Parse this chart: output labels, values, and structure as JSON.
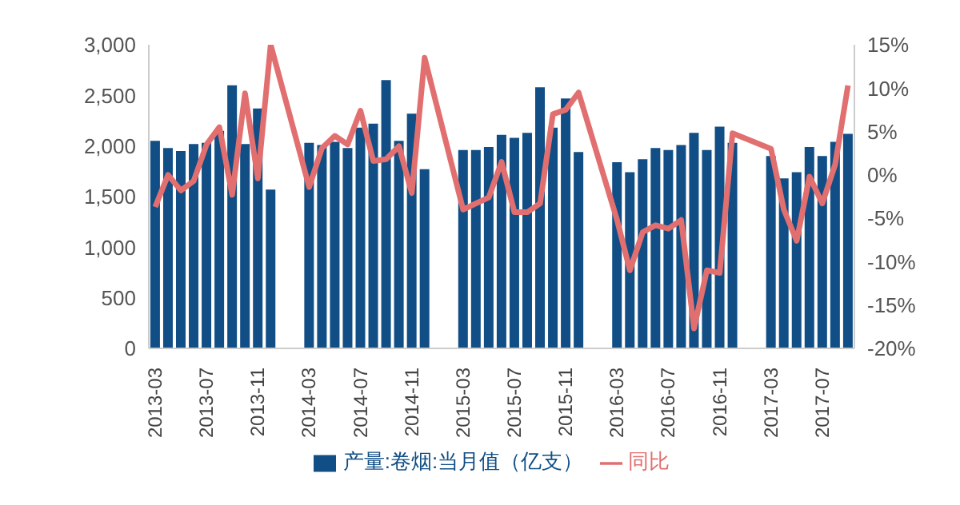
{
  "chart_data": {
    "type": "bar",
    "legend": "bottom",
    "categories": [
      "2013-03",
      null,
      null,
      null,
      "2013-07",
      null,
      null,
      null,
      "2013-11",
      null,
      null,
      null,
      "2014-03",
      null,
      null,
      null,
      "2014-07",
      null,
      null,
      null,
      "2014-11",
      null,
      null,
      null,
      "2015-03",
      null,
      null,
      null,
      "2015-07",
      null,
      null,
      null,
      "2015-11",
      null,
      null,
      null,
      "2016-03",
      null,
      null,
      null,
      "2016-07",
      null,
      null,
      null,
      "2016-11",
      null,
      null,
      null,
      "2017-03",
      null,
      null,
      null,
      "2017-07",
      null,
      null
    ],
    "ylim": [
      0,
      3000
    ],
    "yticks": [
      {
        "value": 0,
        "label": "0"
      },
      {
        "value": 500,
        "label": "500"
      },
      {
        "value": 1000,
        "label": "1,000"
      },
      {
        "value": 1500,
        "label": "1,500"
      },
      {
        "value": 2000,
        "label": "2,000"
      },
      {
        "value": 2500,
        "label": "2,500"
      },
      {
        "value": 3000,
        "label": "3,000"
      }
    ],
    "y2lim": [
      -20,
      15
    ],
    "y2ticks": [
      {
        "value": -20,
        "label": "-20%"
      },
      {
        "value": -15,
        "label": "-15%"
      },
      {
        "value": -10,
        "label": "-10%"
      },
      {
        "value": -5,
        "label": "-5%"
      },
      {
        "value": 0,
        "label": "0%"
      },
      {
        "value": 5,
        "label": "5%"
      },
      {
        "value": 10,
        "label": "10%"
      },
      {
        "value": 15,
        "label": "15%"
      }
    ],
    "series": [
      {
        "name": "产量:卷烟:当月值（亿支）",
        "color": "#104e85",
        "values": [
          2050,
          1980,
          1950,
          2020,
          2030,
          2150,
          2600,
          2020,
          2370,
          1570,
          null,
          null,
          2030,
          2010,
          2040,
          1980,
          2180,
          2220,
          2650,
          2050,
          2320,
          1770,
          null,
          null,
          1960,
          1960,
          1990,
          2110,
          2080,
          2130,
          2580,
          2180,
          2470,
          1940,
          null,
          null,
          1840,
          1740,
          1870,
          1980,
          1960,
          2010,
          2130,
          1960,
          2190,
          2030,
          null,
          null,
          1900,
          1680,
          1740,
          1990,
          1900,
          2040,
          2120
        ]
      },
      {
        "name": "同比",
        "type": "line",
        "axis": "y2",
        "color": "#e26f6f",
        "values": [
          -3.7,
          0,
          -1.8,
          -0.7,
          3.5,
          5.5,
          -2.3,
          9.4,
          -0.4,
          15,
          null,
          null,
          -1.4,
          3.1,
          4.5,
          3.5,
          7.4,
          1.6,
          1.8,
          3.3,
          -2.1,
          13.5,
          null,
          null,
          -4,
          -3.3,
          -2.6,
          1.5,
          -4.3,
          -4.3,
          -3.3,
          7,
          7.5,
          9.5,
          null,
          null,
          -5.2,
          -11,
          -6.6,
          -5.8,
          -6.2,
          -5.2,
          -17.7,
          -11,
          -11.3,
          4.8,
          null,
          null,
          3,
          -4,
          -7.6,
          -0.2,
          -3.3,
          1.2,
          10.3
        ]
      }
    ]
  }
}
